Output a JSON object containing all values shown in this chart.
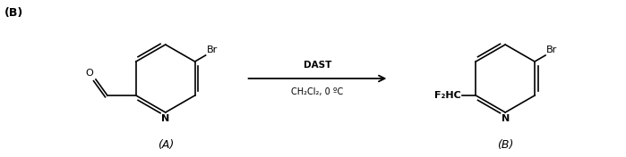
{
  "bg_color": "#ffffff",
  "label_B_topleft": "(B)",
  "label_A_bottom": "(A)",
  "label_B_bottom": "(B)",
  "arrow_label_top": "DAST",
  "arrow_label_bottom": "CH₂Cl₂, 0 ºC",
  "figsize": [
    6.99,
    1.76
  ],
  "dpi": 100
}
